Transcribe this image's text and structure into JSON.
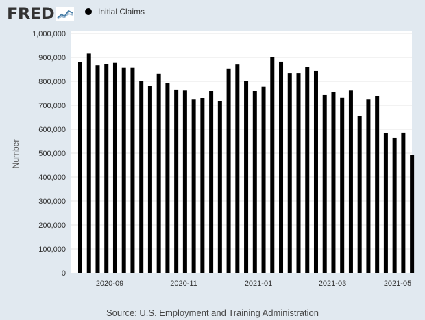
{
  "header": {
    "logo_text": "FRED",
    "logo_icon": "fred-line-chart-logo",
    "legend_label": "Initial Claims"
  },
  "source_text": "Source: U.S. Employment and Training Administration",
  "colors": {
    "background": "#e1e9f0",
    "plot_background": "#ffffff",
    "bar": "#000000",
    "grid": "#e6e6e6"
  },
  "chart_data": {
    "type": "bar",
    "ylabel": "Number",
    "ylim": [
      0,
      1000000
    ],
    "y_ticks": [
      0,
      100000,
      200000,
      300000,
      400000,
      500000,
      600000,
      700000,
      800000,
      900000,
      1000000
    ],
    "y_tick_labels": [
      "0",
      "100,000",
      "200,000",
      "300,000",
      "400,000",
      "500,000",
      "600,000",
      "700,000",
      "800,000",
      "900,000",
      "1,000,000"
    ],
    "x_tick_labels": [
      "2020-09",
      "2020-11",
      "2021-01",
      "2021-03",
      "2021-05"
    ],
    "grid": true,
    "series": [
      {
        "name": "Initial Claims",
        "values": [
          880000,
          916000,
          868000,
          872000,
          878000,
          858000,
          858000,
          800000,
          780000,
          832000,
          793000,
          766000,
          762000,
          725000,
          730000,
          760000,
          718000,
          852000,
          871000,
          800000,
          760000,
          778000,
          900000,
          883000,
          834000,
          834000,
          860000,
          843000,
          743000,
          757000,
          732000,
          762000,
          655000,
          725000,
          740000,
          583000,
          563000,
          586000,
          494000
        ]
      }
    ]
  }
}
